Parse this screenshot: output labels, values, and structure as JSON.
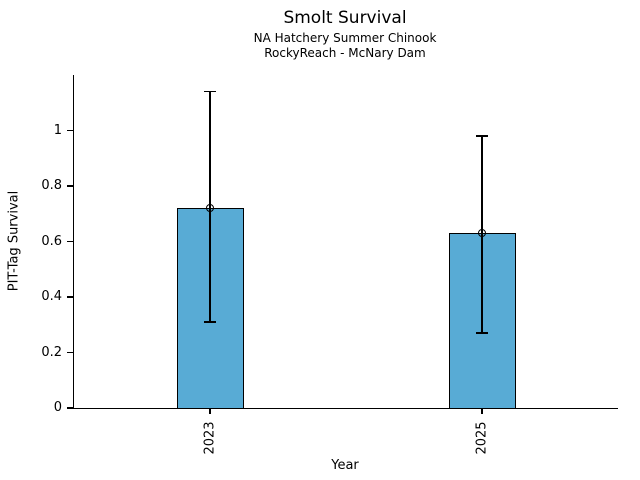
{
  "chart_data": {
    "type": "bar",
    "title": "Smolt Survival",
    "subtitle1": "NA Hatchery Summer Chinook",
    "subtitle2": "RockyReach - McNary Dam",
    "xlabel": "Year",
    "ylabel": "PIT-Tag Survival",
    "categories": [
      "2023",
      "2025"
    ],
    "values": [
      0.72,
      0.63
    ],
    "error_low": [
      0.31,
      0.27
    ],
    "error_high": [
      1.14,
      0.98
    ],
    "yticks": [
      0,
      0.2,
      0.4,
      0.6,
      0.8,
      1
    ],
    "ylim": [
      0,
      1.2
    ],
    "bar_color": "#58abd5",
    "bar_edge_color": "#000000",
    "axis_color": "#000000",
    "marker": "open-circle",
    "grid": false,
    "legend": false,
    "x_tick_label_rotation_deg": 90
  }
}
